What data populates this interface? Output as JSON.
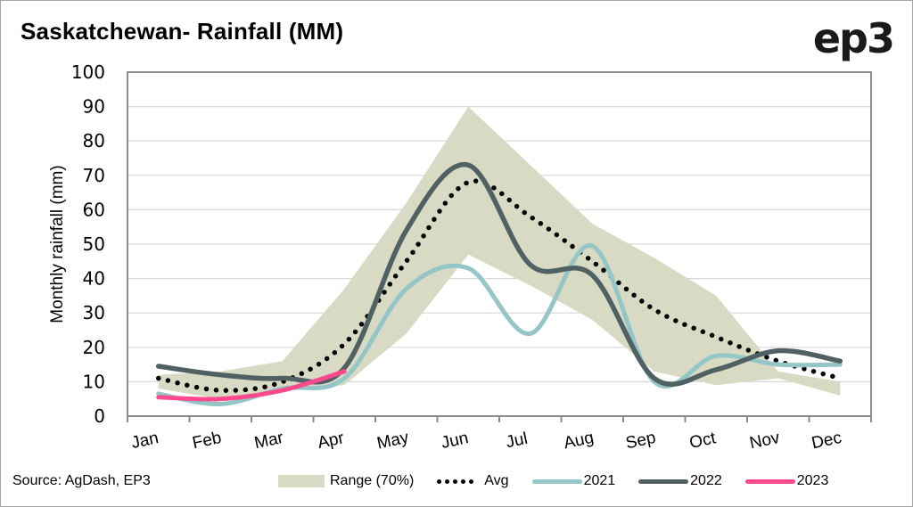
{
  "header": {
    "title": "Saskatchewan- Rainfall (MM)",
    "logo_text": "ep3"
  },
  "footer": {
    "source": "Source: AgDash, EP3"
  },
  "colors": {
    "range": "#d9dac4",
    "avg": "#000000",
    "y2021": "#94c6c8",
    "y2022": "#4f6163",
    "y2023": "#ff4a8d",
    "grid": "#d9d9d9",
    "axis": "#8c8c8c"
  },
  "chart_data": {
    "type": "line",
    "title": "Saskatchewan- Rainfall (MM)",
    "xlabel": "",
    "ylabel": "Monthly rainfall (mm)",
    "ylim": [
      0,
      100
    ],
    "yticks": [
      0,
      10,
      20,
      30,
      40,
      50,
      60,
      70,
      80,
      90,
      100
    ],
    "grid": true,
    "legend_position": "bottom",
    "categories": [
      "Jan",
      "Feb",
      "Mar",
      "Apr",
      "May",
      "Jun",
      "Jul",
      "Aug",
      "Sep",
      "Oct",
      "Nov",
      "Dec"
    ],
    "range": {
      "name": "Range (70%)",
      "upper": [
        12,
        13,
        16,
        37,
        62,
        90,
        73,
        56,
        46,
        35,
        13,
        10
      ],
      "lower": [
        8,
        5,
        8,
        9,
        24,
        47,
        38,
        28,
        13,
        9,
        11,
        6
      ]
    },
    "series": [
      {
        "name": "Avg",
        "style": "dotted",
        "values": [
          11,
          7.5,
          10,
          21,
          45,
          68,
          58,
          45,
          31,
          23,
          16,
          11
        ]
      },
      {
        "name": "2021",
        "style": "solid",
        "values": [
          6.5,
          3.5,
          8,
          11,
          37,
          43,
          24,
          49.5,
          10,
          17.5,
          15,
          15
        ]
      },
      {
        "name": "2022",
        "style": "solid",
        "values": [
          14.5,
          12,
          11,
          14,
          54,
          73,
          44,
          41,
          11,
          13.5,
          19,
          16
        ]
      },
      {
        "name": "2023",
        "style": "solid",
        "values": [
          5.5,
          5,
          7.5,
          13
        ]
      }
    ]
  },
  "legend": {
    "items": [
      "Range (70%)",
      "Avg",
      "2021",
      "2022",
      "2023"
    ]
  }
}
